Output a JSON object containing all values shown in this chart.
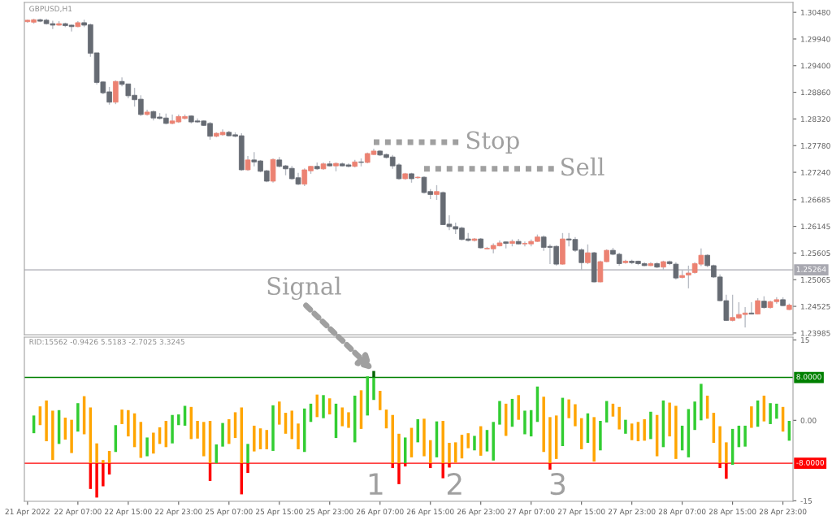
{
  "chart_data": [
    {
      "type": "candlestick",
      "title": "GBPUSD,H1",
      "ohlc": [
        [
          1.3029,
          1.3033,
          1.3027,
          1.3032
        ],
        [
          1.3028,
          1.3035,
          1.3025,
          1.3033
        ],
        [
          1.3033,
          1.3035,
          1.3028,
          1.303
        ],
        [
          1.3032,
          1.3035,
          1.3023,
          1.3025
        ],
        [
          1.3025,
          1.3031,
          1.3014,
          1.3022
        ],
        [
          1.3022,
          1.303,
          1.3021,
          1.3025
        ],
        [
          1.3025,
          1.3027,
          1.3018,
          1.3021
        ],
        [
          1.3022,
          1.3023,
          1.3009,
          1.3019
        ],
        [
          1.3019,
          1.303,
          1.3018,
          1.3027
        ],
        [
          1.3027,
          1.3033,
          1.3018,
          1.3022
        ],
        [
          1.3023,
          1.3025,
          1.2958,
          1.2965
        ],
        [
          1.2966,
          1.2966,
          1.2902,
          1.2906
        ],
        [
          1.2907,
          1.2908,
          1.2882,
          1.2885
        ],
        [
          1.2887,
          1.2897,
          1.2861,
          1.2866
        ],
        [
          1.2866,
          1.291,
          1.2862,
          1.2908
        ],
        [
          1.2908,
          1.2916,
          1.2898,
          1.2902
        ],
        [
          1.2903,
          1.2903,
          1.2874,
          1.2879
        ],
        [
          1.288,
          1.2895,
          1.2857,
          1.2871
        ],
        [
          1.2872,
          1.288,
          1.2838,
          1.2841
        ],
        [
          1.2841,
          1.2851,
          1.2839,
          1.2846
        ],
        [
          1.2847,
          1.2849,
          1.2829,
          1.2834
        ],
        [
          1.2836,
          1.2844,
          1.2831,
          1.2833
        ],
        [
          1.2834,
          1.2843,
          1.2821,
          1.2823
        ],
        [
          1.2823,
          1.2841,
          1.2821,
          1.2828
        ],
        [
          1.2826,
          1.2841,
          1.2824,
          1.2837
        ],
        [
          1.2833,
          1.2841,
          1.2831,
          1.2837
        ],
        [
          1.2838,
          1.2839,
          1.2823,
          1.2826
        ],
        [
          1.2828,
          1.2833,
          1.2824,
          1.2826
        ],
        [
          1.2828,
          1.2829,
          1.2818,
          1.2819
        ],
        [
          1.2823,
          1.2826,
          1.279,
          1.2797
        ],
        [
          1.2797,
          1.2805,
          1.2795,
          1.2803
        ],
        [
          1.28,
          1.2811,
          1.2798,
          1.2805
        ],
        [
          1.2805,
          1.2808,
          1.2797,
          1.2798
        ],
        [
          1.28,
          1.2805,
          1.2795,
          1.2797
        ],
        [
          1.2798,
          1.2803,
          1.2727,
          1.2729
        ],
        [
          1.2729,
          1.2757,
          1.2727,
          1.2749
        ],
        [
          1.2749,
          1.2765,
          1.2736,
          1.2745
        ],
        [
          1.2747,
          1.2749,
          1.2724,
          1.2726
        ],
        [
          1.2727,
          1.2729,
          1.2704,
          1.2706
        ],
        [
          1.2706,
          1.2752,
          1.2703,
          1.275
        ],
        [
          1.2749,
          1.2755,
          1.2734,
          1.2736
        ],
        [
          1.2737,
          1.2739,
          1.2718,
          1.2731
        ],
        [
          1.2732,
          1.2737,
          1.2709,
          1.2711
        ],
        [
          1.2713,
          1.2723,
          1.2698,
          1.27
        ],
        [
          1.27,
          1.2732,
          1.2696,
          1.2729
        ],
        [
          1.2727,
          1.2737,
          1.2721,
          1.2736
        ],
        [
          1.2736,
          1.2744,
          1.2729,
          1.2731
        ],
        [
          1.2731,
          1.2744,
          1.2729,
          1.2741
        ],
        [
          1.2741,
          1.2747,
          1.2736,
          1.2737
        ],
        [
          1.2737,
          1.2744,
          1.2726,
          1.2742
        ],
        [
          1.2741,
          1.2744,
          1.2736,
          1.2737
        ],
        [
          1.2739,
          1.2742,
          1.2734,
          1.2736
        ],
        [
          1.2736,
          1.2749,
          1.2734,
          1.2745
        ],
        [
          1.2745,
          1.2752,
          1.2736,
          1.2744
        ],
        [
          1.2744,
          1.2764,
          1.2742,
          1.2762
        ],
        [
          1.276,
          1.2772,
          1.2759,
          1.2767
        ],
        [
          1.2767,
          1.2769,
          1.2757,
          1.2759
        ],
        [
          1.276,
          1.2762,
          1.2752,
          1.2754
        ],
        [
          1.2755,
          1.2759,
          1.2731,
          1.2737
        ],
        [
          1.2739,
          1.2742,
          1.2709,
          1.2711
        ],
        [
          1.2711,
          1.2723,
          1.2709,
          1.2721
        ],
        [
          1.2721,
          1.2723,
          1.2703,
          1.2711
        ],
        [
          1.2713,
          1.2716,
          1.2711,
          1.2714
        ],
        [
          1.2714,
          1.2716,
          1.2681,
          1.2683
        ],
        [
          1.2685,
          1.269,
          1.267,
          1.2679
        ],
        [
          1.2679,
          1.2698,
          1.2668,
          1.2685
        ],
        [
          1.2683,
          1.2685,
          1.2617,
          1.2618
        ],
        [
          1.2619,
          1.2637,
          1.2607,
          1.2614
        ],
        [
          1.2614,
          1.2622,
          1.2599,
          1.2609
        ],
        [
          1.2611,
          1.2614,
          1.2586,
          1.2588
        ],
        [
          1.2589,
          1.2601,
          1.2584,
          1.2586
        ],
        [
          1.2586,
          1.2591,
          1.2584,
          1.2589
        ],
        [
          1.2589,
          1.2591,
          1.257,
          1.2571
        ],
        [
          1.2569,
          1.2573,
          1.2568,
          1.257
        ],
        [
          1.2569,
          1.258,
          1.256,
          1.2576
        ],
        [
          1.2575,
          1.2586,
          1.2574,
          1.2581
        ],
        [
          1.2583,
          1.2584,
          1.257,
          1.258
        ],
        [
          1.258,
          1.2588,
          1.2574,
          1.2584
        ],
        [
          1.2584,
          1.2589,
          1.2578,
          1.2579
        ],
        [
          1.2579,
          1.2584,
          1.2574,
          1.258
        ],
        [
          1.2579,
          1.2588,
          1.2574,
          1.2584
        ],
        [
          1.2584,
          1.2598,
          1.2583,
          1.2593
        ],
        [
          1.2593,
          1.2596,
          1.2565,
          1.2572
        ],
        [
          1.2574,
          1.2578,
          1.2538,
          1.2572
        ],
        [
          1.2574,
          1.2576,
          1.2535,
          1.2538
        ],
        [
          1.2538,
          1.2601,
          1.2537,
          1.2589
        ],
        [
          1.2589,
          1.2601,
          1.2574,
          1.2587
        ],
        [
          1.2588,
          1.2593,
          1.2563,
          1.2566
        ],
        [
          1.2567,
          1.257,
          1.2525,
          1.2541
        ],
        [
          1.2541,
          1.2578,
          1.2538,
          1.2561
        ],
        [
          1.2561,
          1.2563,
          1.2501,
          1.2502
        ],
        [
          1.2502,
          1.2545,
          1.2501,
          1.2543
        ],
        [
          1.2543,
          1.2568,
          1.2542,
          1.2566
        ],
        [
          1.2566,
          1.2571,
          1.2556,
          1.2558
        ],
        [
          1.2558,
          1.2561,
          1.2535,
          1.2539
        ],
        [
          1.2541,
          1.2547,
          1.2539,
          1.2544
        ],
        [
          1.2544,
          1.2547,
          1.2538,
          1.2541
        ],
        [
          1.2544,
          1.2545,
          1.2536,
          1.2539
        ],
        [
          1.2539,
          1.2542,
          1.2534,
          1.2535
        ],
        [
          1.2535,
          1.2542,
          1.2534,
          1.2539
        ],
        [
          1.2539,
          1.2542,
          1.253,
          1.2532
        ],
        [
          1.2532,
          1.2545,
          1.2525,
          1.2543
        ],
        [
          1.2543,
          1.2545,
          1.2536,
          1.2539
        ],
        [
          1.2538,
          1.2542,
          1.2507,
          1.251
        ],
        [
          1.2511,
          1.2525,
          1.2509,
          1.2515
        ],
        [
          1.2516,
          1.2535,
          1.2489,
          1.252
        ],
        [
          1.2521,
          1.2542,
          1.2519,
          1.2539
        ],
        [
          1.2538,
          1.257,
          1.2534,
          1.2556
        ],
        [
          1.2556,
          1.2558,
          1.2532,
          1.2535
        ],
        [
          1.2535,
          1.2537,
          1.251,
          1.2512
        ],
        [
          1.2512,
          1.2517,
          1.2463,
          1.2464
        ],
        [
          1.2464,
          1.2476,
          1.2423,
          1.2424
        ],
        [
          1.2424,
          1.2476,
          1.2422,
          1.243
        ],
        [
          1.2429,
          1.2461,
          1.2427,
          1.2436
        ],
        [
          1.2436,
          1.2451,
          1.241,
          1.2439
        ],
        [
          1.2439,
          1.2461,
          1.2436,
          1.2437
        ],
        [
          1.2437,
          1.2469,
          1.2436,
          1.2464
        ],
        [
          1.2463,
          1.2473,
          1.2448,
          1.245
        ],
        [
          1.245,
          1.2464,
          1.2448,
          1.2462
        ],
        [
          1.2462,
          1.2471,
          1.2458,
          1.2466
        ],
        [
          1.2466,
          1.2471,
          1.2453,
          1.2454
        ],
        [
          1.2446,
          1.2458,
          1.2445,
          1.2455
        ]
      ],
      "colors": [
        "#ec8272",
        "#ec8272",
        "#666b73",
        "#666b73",
        "#666b73",
        "#ec8272",
        "#666b73",
        "#666b73",
        "#ec8272",
        "#666b73",
        "#666b73",
        "#666b73",
        "#666b73",
        "#666b73",
        "#ec8272",
        "#666b73",
        "#666b73",
        "#666b73",
        "#666b73",
        "#ec8272",
        "#666b73",
        "#666b73",
        "#666b73",
        "#ec8272",
        "#ec8272",
        "#ec8272",
        "#666b73",
        "#666b73",
        "#666b73",
        "#666b73",
        "#ec8272",
        "#ec8272",
        "#666b73",
        "#666b73",
        "#666b73",
        "#ec8272",
        "#666b73",
        "#666b73",
        "#666b73",
        "#ec8272",
        "#666b73",
        "#666b73",
        "#666b73",
        "#666b73",
        "#ec8272",
        "#ec8272",
        "#666b73",
        "#ec8272",
        "#666b73",
        "#ec8272",
        "#666b73",
        "#666b73",
        "#ec8272",
        "#666b73",
        "#ec8272",
        "#ec8272",
        "#666b73",
        "#666b73",
        "#666b73",
        "#666b73",
        "#ec8272",
        "#666b73",
        "#ec8272",
        "#666b73",
        "#666b73",
        "#ec8272",
        "#666b73",
        "#666b73",
        "#666b73",
        "#666b73",
        "#666b73",
        "#ec8272",
        "#666b73",
        "#ec8272",
        "#ec8272",
        "#ec8272",
        "#666b73",
        "#ec8272",
        "#666b73",
        "#ec8272",
        "#ec8272",
        "#ec8272",
        "#666b73",
        "#666b73",
        "#666b73",
        "#ec8272",
        "#666b73",
        "#666b73",
        "#666b73",
        "#ec8272",
        "#666b73",
        "#ec8272",
        "#ec8272",
        "#666b73",
        "#666b73",
        "#ec8272",
        "#666b73",
        "#666b73",
        "#666b73",
        "#ec8272",
        "#666b73",
        "#ec8272",
        "#666b73",
        "#666b73",
        "#ec8272",
        "#ec8272",
        "#ec8272",
        "#ec8272",
        "#666b73",
        "#666b73",
        "#666b73",
        "#666b73",
        "#ec8272",
        "#ec8272",
        "#ec8272",
        "#666b73",
        "#ec8272",
        "#666b73",
        "#ec8272",
        "#ec8272",
        "#666b73",
        "#ec8272"
      ],
      "series": [
        {
          "type": "line",
          "color": "#a0a0a0",
          "line_style": "dotted",
          "values": [
            null,
            null,
            null,
            null,
            null,
            null,
            null,
            null,
            null,
            null,
            null,
            null,
            null,
            null,
            null,
            null,
            null,
            null,
            null,
            null,
            null,
            null,
            null,
            null,
            null,
            null,
            null,
            null,
            null,
            null,
            null,
            null,
            null,
            null,
            null,
            null,
            null,
            null,
            null,
            null,
            null,
            null,
            null,
            null,
            null,
            null,
            null,
            null,
            null,
            null,
            null,
            null,
            null,
            null,
            null,
            1.2785,
            1.2785,
            1.2785,
            1.2785,
            1.2785,
            1.2785,
            1.2785,
            1.2785,
            1.2785,
            1.2785,
            1.2785,
            1.2785,
            1.2785,
            1.2785,
            1.2785,
            null,
            null,
            null,
            null,
            null,
            null,
            null,
            null,
            null,
            null,
            null,
            null,
            null,
            null,
            null,
            null,
            null,
            null,
            null,
            null,
            null,
            null,
            null,
            null,
            null,
            null,
            null,
            null,
            null,
            null,
            null,
            null,
            null,
            null,
            null,
            null,
            null,
            null,
            null,
            null,
            null,
            null,
            null,
            null,
            null,
            null,
            null,
            null,
            null,
            null,
            null,
            null
          ]
        },
        {
          "type": "line",
          "color": "#a0a0a0",
          "line_style": "dotted",
          "values": [
            null,
            null,
            null,
            null,
            null,
            null,
            null,
            null,
            null,
            null,
            null,
            null,
            null,
            null,
            null,
            null,
            null,
            null,
            null,
            null,
            null,
            null,
            null,
            null,
            null,
            null,
            null,
            null,
            null,
            null,
            null,
            null,
            null,
            null,
            null,
            null,
            null,
            null,
            null,
            null,
            null,
            null,
            null,
            null,
            null,
            null,
            null,
            null,
            null,
            null,
            null,
            null,
            null,
            null,
            null,
            null,
            null,
            null,
            null,
            null,
            null,
            null,
            null,
            1.2731,
            1.2731,
            1.2731,
            1.2731,
            1.2731,
            1.2731,
            1.2731,
            1.2731,
            1.2731,
            1.2731,
            1.2731,
            1.2731,
            1.2731,
            1.2731,
            1.2731,
            1.2731,
            1.2731,
            1.2731,
            1.2731,
            1.2731,
            1.2731,
            1.2731,
            null,
            null,
            null,
            null,
            null,
            null,
            null,
            null,
            null,
            null,
            null,
            null,
            null,
            null,
            null,
            null,
            null,
            null,
            null,
            null,
            null,
            null,
            null,
            null,
            null,
            null,
            null,
            null,
            null,
            null,
            null,
            null,
            null,
            null,
            null,
            null,
            null
          ]
        }
      ],
      "ylim": [
        1.2395,
        1.3068
      ],
      "yticks": [
        {
          "value": 1.3048,
          "label": "1.30480"
        },
        {
          "value": 1.2994,
          "label": "1.29940"
        },
        {
          "value": 1.294,
          "label": "1.29400"
        },
        {
          "value": 1.2886,
          "label": "1.28860"
        },
        {
          "value": 1.2832,
          "label": "1.28320"
        },
        {
          "value": 1.2778,
          "label": "1.27780"
        },
        {
          "value": 1.2724,
          "label": "1.27240"
        },
        {
          "value": 1.26685,
          "label": "1.26685"
        },
        {
          "value": 1.26145,
          "label": "1.26145"
        },
        {
          "value": 1.25605,
          "label": "1.25605"
        },
        {
          "value": 1.25065,
          "label": "1.25065"
        },
        {
          "value": 1.24525,
          "label": "1.24525"
        },
        {
          "value": 1.23985,
          "label": "1.23985"
        }
      ],
      "tick_labels": "y",
      "ref_lines": [
        {
          "axis": "y",
          "value": 1.25264,
          "label": "1.25264",
          "color": "#a8a8b0"
        }
      ],
      "annotations": [
        "Stop",
        "Sell"
      ]
    },
    {
      "type": "bar",
      "categories": [
        "21 Apr 2022",
        null,
        null,
        null,
        null,
        null,
        null,
        null,
        "22 Apr 07:00",
        null,
        null,
        null,
        null,
        null,
        null,
        null,
        "22 Apr 15:00",
        null,
        null,
        null,
        null,
        null,
        null,
        null,
        "22 Apr 23:00",
        null,
        null,
        null,
        null,
        null,
        null,
        null,
        "25 Apr 07:00",
        null,
        null,
        null,
        null,
        null,
        null,
        null,
        "25 Apr 15:00",
        null,
        null,
        null,
        null,
        null,
        null,
        null,
        "25 Apr 23:00",
        null,
        null,
        null,
        null,
        null,
        null,
        null,
        "26 Apr 07:00",
        null,
        null,
        null,
        null,
        null,
        null,
        null,
        "26 Apr 15:00",
        null,
        null,
        null,
        null,
        null,
        null,
        null,
        "26 Apr 23:00",
        null,
        null,
        null,
        null,
        null,
        null,
        null,
        "27 Apr 07:00",
        null,
        null,
        null,
        null,
        null,
        null,
        null,
        "27 Apr 15:00",
        null,
        null,
        null,
        null,
        null,
        null,
        null,
        "27 Apr 23:00",
        null,
        null,
        null,
        null,
        null,
        null,
        null,
        "28 Apr 07:00",
        null,
        null,
        null,
        null,
        null,
        null,
        null,
        "28 Apr 15:00",
        null,
        null,
        null,
        null,
        null,
        null,
        null,
        "28 Apr 23:00",
        null
      ],
      "series": [
        {
          "base": [
            null,
            -2.4,
            -0.9,
            -3.9,
            -7.4,
            -4.4,
            -3.6,
            -6.1,
            -2.1,
            -2.6,
            -8,
            -8,
            -8,
            -8,
            -5.9,
            -0.7,
            -3.0,
            -5.0,
            -7.0,
            -6.7,
            -6.2,
            -4.4,
            -5.0,
            -4.3,
            -0.9,
            -1.0,
            -3.5,
            -3.4,
            -6.7,
            -8,
            -8,
            -4.9,
            -4.4,
            -3.3,
            -8,
            -8,
            -5.8,
            -5.4,
            -5.4,
            -5.7,
            -0.8,
            -2.5,
            -3.5,
            -5.4,
            -5.9,
            -0.3,
            0.6,
            0.4,
            1.1,
            -3.3,
            -1.1,
            -1.4,
            -4.1,
            -1.6,
            0.9,
            3.8,
            1.9,
            -1.5,
            -8,
            -8,
            -8,
            -6.9,
            -4.1,
            -6.7,
            -8,
            -6.9,
            -8,
            -8,
            -7.9,
            -7.1,
            -5.2,
            -5.6,
            -6.6,
            -5.8,
            -7.5,
            -0.8,
            -2.9,
            -1.2,
            0.1,
            -2.6,
            -3.0,
            -0.3,
            -5.9,
            -8,
            -7.2,
            -4.8,
            0.4,
            -1.1,
            -5.4,
            -4.2,
            -7.7,
            -5.6,
            -0.4,
            0.7,
            -1.7,
            -2.5,
            -3.7,
            -3.9,
            -3.8,
            -3.5,
            -6.7,
            -5.0,
            -3.0,
            -7.2,
            -5.6,
            -6.9,
            -1.8,
            0.0,
            0.3,
            -4.2,
            -8,
            -8,
            -8.3,
            -5.0,
            -4.9,
            -1.4,
            -1.2,
            -0.2,
            -0.7,
            0.3,
            -2.1,
            -3.8
          ],
          "values": [
            null,
            3.3,
            3.5,
            7.6,
            9.2,
            6.3,
            4.1,
            6.2,
            5.3,
            7.1,
            10.4,
            3.7,
            0.6,
            2.3,
            5.0,
            2.7,
            4.9,
            6.3,
            6.7,
            3.5,
            3.9,
            3.1,
            4.9,
            5.3,
            2.0,
            3.7,
            6.0,
            3.3,
            6.4,
            7.9,
            3.5,
            4.4,
            4.6,
            4.8,
            10.4,
            3.6,
            4.8,
            3.9,
            3.6,
            8.5,
            4.3,
            3.9,
            5.3,
            4.8,
            8.1,
            3.4,
            4.2,
            4.3,
            3.0,
            6.4,
            3.5,
            2.9,
            8.7,
            7.2,
            7.3,
            4.2,
            3.6,
            3.5,
            9.0,
            5.5,
            4.8,
            5.5,
            4.3,
            7.0,
            4.3,
            6.7,
            7.9,
            3.8,
            3.8,
            4.4,
            2.8,
            2.7,
            5.5,
            4.0,
            7.2,
            4.4,
            6.0,
            5.2,
            4.6,
            4.4,
            4.9,
            6.6,
            10.3,
            8.6,
            8.1,
            9.0,
            3.5,
            4.1,
            5.8,
            5.5,
            8.3,
            5.5,
            4.0,
            2.4,
            4.2,
            2.6,
            3.1,
            3.6,
            4.0,
            5.1,
            7.7,
            8.7,
            6.3,
            9.9,
            4.6,
            9.0,
            5.3,
            6.8,
            4.3,
            5.6,
            6.9,
            3.9,
            6.7,
            4.0,
            3.9,
            4.0,
            4.9,
            4.8,
            3.9,
            2.8,
            4.6,
            3.7
          ],
          "colors": [
            null,
            "#32cd32",
            "#ffa500",
            "#ffa500",
            "#ffa500",
            "#32cd32",
            "#ffa500",
            "#ffa500",
            "#32cd32",
            "#ffa500",
            "#ffa500",
            "#ffa500",
            "#ffa500",
            "#ffa500",
            "#32cd32",
            "#ffa500",
            "#ffa500",
            "#ffa500",
            "#ffa500",
            "#32cd32",
            "#ffa500",
            "#ffa500",
            "#ffa500",
            "#32cd32",
            "#32cd32",
            "#32cd32",
            "#ffa500",
            "#ffa500",
            "#ffa500",
            "#ffa500",
            "#32cd32",
            "#32cd32",
            "#ffa500",
            "#ffa500",
            "#ffa500",
            "#32cd32",
            "#ffa500",
            "#ffa500",
            "#ffa500",
            "#32cd32",
            "#ffa500",
            "#ffa500",
            "#ffa500",
            "#ffa500",
            "#32cd32",
            "#32cd32",
            "#ffa500",
            "#32cd32",
            "#ffa500",
            "#32cd32",
            "#ffa500",
            "#ffa500",
            "#32cd32",
            "#ffa500",
            "#32cd32",
            "#32cd32",
            "#ffa500",
            "#ffa500",
            "#ffa500",
            "#ffa500",
            "#32cd32",
            "#ffa500",
            "#32cd32",
            "#ffa500",
            "#ffa500",
            "#32cd32",
            "#ffa500",
            "#ffa500",
            "#ffa500",
            "#ffa500",
            "#ffa500",
            "#32cd32",
            "#ffa500",
            "#32cd32",
            "#32cd32",
            "#32cd32",
            "#ffa500",
            "#32cd32",
            "#ffa500",
            "#32cd32",
            "#32cd32",
            "#32cd32",
            "#ffa500",
            "#ffa500",
            "#ffa500",
            "#32cd32",
            "#ffa500",
            "#ffa500",
            "#ffa500",
            "#32cd32",
            "#ffa500",
            "#32cd32",
            "#32cd32",
            "#ffa500",
            "#ffa500",
            "#32cd32",
            "#ffa500",
            "#ffa500",
            "#ffa500",
            "#32cd32",
            "#ffa500",
            "#32cd32",
            "#ffa500",
            "#ffa500",
            "#32cd32",
            "#32cd32",
            "#32cd32",
            "#32cd32",
            "#ffa500",
            "#ffa500",
            "#ffa500",
            "#ffa500",
            "#32cd32",
            "#32cd32",
            "#32cd32",
            "#ffa500",
            "#32cd32",
            "#ffa500",
            "#32cd32",
            "#32cd32",
            "#ffa500",
            "#32cd32"
          ]
        },
        {
          "color": "#ff0000",
          "base": [
            null,
            null,
            null,
            null,
            null,
            null,
            null,
            null,
            null,
            null,
            -8,
            -8,
            -8,
            -8,
            null,
            null,
            null,
            null,
            null,
            null,
            null,
            null,
            null,
            null,
            null,
            null,
            null,
            null,
            null,
            -8,
            null,
            null,
            null,
            null,
            -8,
            -8,
            null,
            null,
            null,
            null,
            null,
            null,
            null,
            null,
            null,
            null,
            null,
            null,
            null,
            null,
            null,
            null,
            null,
            null,
            null,
            null,
            null,
            null,
            -8,
            -8,
            -8,
            null,
            null,
            null,
            -8,
            null,
            -8,
            -8,
            null,
            null,
            null,
            null,
            null,
            null,
            null,
            null,
            null,
            null,
            null,
            null,
            null,
            null,
            null,
            -8,
            null,
            null,
            null,
            null,
            null,
            null,
            null,
            null,
            null,
            null,
            null,
            null,
            null,
            null,
            null,
            null,
            null,
            null,
            null,
            null,
            null,
            null,
            null,
            null,
            null,
            null,
            -8,
            -8,
            null,
            null,
            null,
            null,
            null,
            null,
            null,
            null,
            null,
            null
          ],
          "values": [
            null,
            null,
            null,
            null,
            null,
            null,
            null,
            null,
            null,
            null,
            -4.8,
            -6.4,
            -4.3,
            -2.1,
            null,
            null,
            null,
            null,
            null,
            null,
            null,
            null,
            null,
            null,
            null,
            null,
            null,
            null,
            null,
            -3.3,
            null,
            null,
            null,
            null,
            -5.8,
            -1.8,
            null,
            null,
            null,
            null,
            null,
            null,
            null,
            null,
            null,
            null,
            null,
            null,
            null,
            null,
            null,
            null,
            null,
            null,
            null,
            null,
            null,
            null,
            -0.9,
            -3.9,
            -0.6,
            null,
            null,
            null,
            -0.9,
            null,
            -2.8,
            -0.8,
            null,
            null,
            null,
            null,
            null,
            null,
            null,
            null,
            null,
            null,
            null,
            null,
            null,
            null,
            null,
            -1.2,
            null,
            null,
            null,
            null,
            null,
            null,
            null,
            null,
            null,
            null,
            null,
            null,
            null,
            null,
            null,
            null,
            null,
            null,
            null,
            null,
            null,
            null,
            null,
            null,
            null,
            null,
            -0.9,
            -2.9,
            null,
            null,
            null,
            null,
            null,
            null,
            null,
            null,
            null,
            null
          ]
        },
        {
          "color": "#006400",
          "base": [
            null,
            null,
            null,
            null,
            null,
            null,
            null,
            null,
            null,
            null,
            null,
            null,
            null,
            null,
            null,
            null,
            null,
            null,
            null,
            null,
            null,
            null,
            null,
            null,
            null,
            null,
            null,
            null,
            null,
            null,
            null,
            null,
            null,
            null,
            null,
            null,
            null,
            null,
            null,
            null,
            null,
            null,
            null,
            null,
            null,
            null,
            null,
            null,
            null,
            null,
            null,
            null,
            null,
            null,
            null,
            8,
            null,
            null,
            null,
            null,
            null,
            null,
            null,
            null,
            null,
            null,
            null,
            null,
            null,
            null,
            null,
            null,
            null,
            null,
            null,
            null,
            null,
            null,
            null,
            null,
            null,
            null,
            null,
            null,
            null,
            null,
            null,
            null,
            null,
            null,
            null,
            null,
            null,
            null,
            null,
            null,
            null,
            null,
            null,
            null,
            null,
            null,
            null,
            null,
            null,
            null,
            null,
            null,
            null,
            null,
            null,
            null,
            null,
            null,
            null,
            null,
            null,
            null,
            null,
            null,
            null,
            null
          ],
          "values": [
            null,
            null,
            null,
            null,
            null,
            null,
            null,
            null,
            null,
            null,
            null,
            null,
            null,
            null,
            null,
            null,
            null,
            null,
            null,
            null,
            null,
            null,
            null,
            null,
            null,
            null,
            null,
            null,
            null,
            null,
            null,
            null,
            null,
            null,
            null,
            null,
            null,
            null,
            null,
            null,
            null,
            null,
            null,
            null,
            null,
            null,
            null,
            null,
            null,
            null,
            null,
            null,
            null,
            null,
            null,
            1.2,
            null,
            null,
            null,
            null,
            null,
            null,
            null,
            null,
            null,
            null,
            null,
            null,
            null,
            null,
            null,
            null,
            null,
            null,
            null,
            null,
            null,
            null,
            null,
            null,
            null,
            null,
            null,
            null,
            null,
            null,
            null,
            null,
            null,
            null,
            null,
            null,
            null,
            null,
            null,
            null,
            null,
            null,
            null,
            null,
            null,
            null,
            null,
            null,
            null,
            null,
            null,
            null,
            null,
            null,
            null,
            null,
            null,
            null,
            null,
            null,
            null,
            null,
            null,
            null,
            null,
            null
          ]
        }
      ],
      "ylim": [
        -15.1,
        15.5
      ],
      "yticks": [
        15,
        {
          "value": 0,
          "label": "0.00"
        },
        -15
      ],
      "ref_lines": [
        {
          "axis": "y",
          "value": 8,
          "label": "8.0000",
          "color": "#008000"
        },
        {
          "axis": "y",
          "value": -8,
          "label": "-8.0000",
          "color": "#ff0000"
        }
      ],
      "annotations": [
        "Signal",
        "RID:15562 -0.9426 5.5183 -2.7025 3.3245",
        "1",
        "2",
        "3"
      ]
    }
  ]
}
